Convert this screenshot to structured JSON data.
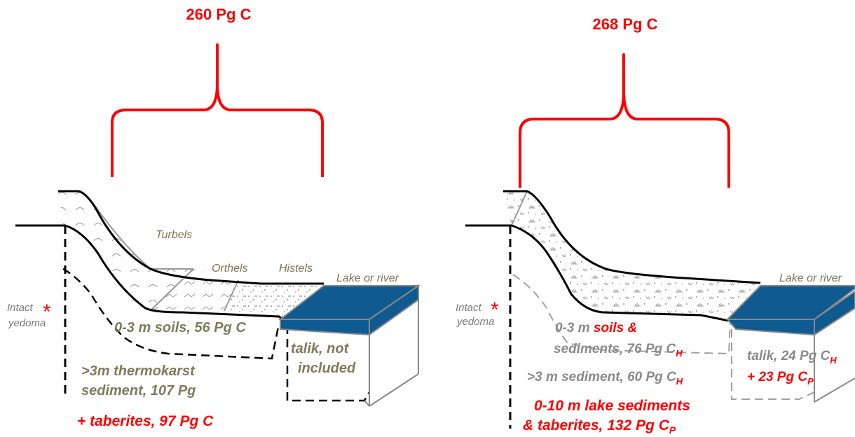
{
  "left": {
    "total": "260 Pg C",
    "labels": {
      "turbels": "Turbels",
      "orthels": "Orthels",
      "histels": "Histels",
      "lake": "Lake or river",
      "intact": "Intact",
      "yedoma": "yedoma"
    },
    "soils": "0-3 m soils, 56 Pg C",
    "talik_1": "talik, not",
    "talik_2": "included",
    "thermo_1": ">3m thermokarst",
    "thermo_2": "sediment, 107 Pg",
    "taberites": "+ taberites, 97 Pg C"
  },
  "right": {
    "total": "268 Pg C",
    "labels": {
      "lake": "Lake or river",
      "intact": "Intact",
      "yedoma": "yedoma"
    },
    "soils_a": "0-3 m ",
    "soils_b": "soils &",
    "soils_2a": "sediments, 76 Pg C",
    "soils_2sub": "H",
    "sediment_a": ">3 m sediment, 60 Pg C",
    "sediment_sub": "H",
    "talik_a": "talik, 24 Pg C",
    "talik_sub": "H",
    "talik_p_a": "+ 23 Pg C",
    "talik_p_sub": "P",
    "lake_sed_1": "0-10 m lake sediments",
    "lake_sed_2a": "& taberites, 132 Pg C",
    "lake_sed_2sub": "P"
  },
  "asterisk": "*",
  "colors": {
    "red": "#ff0000",
    "water": "#0e5a91",
    "olive": "#807a5c",
    "grey": "#8a8a8a"
  }
}
